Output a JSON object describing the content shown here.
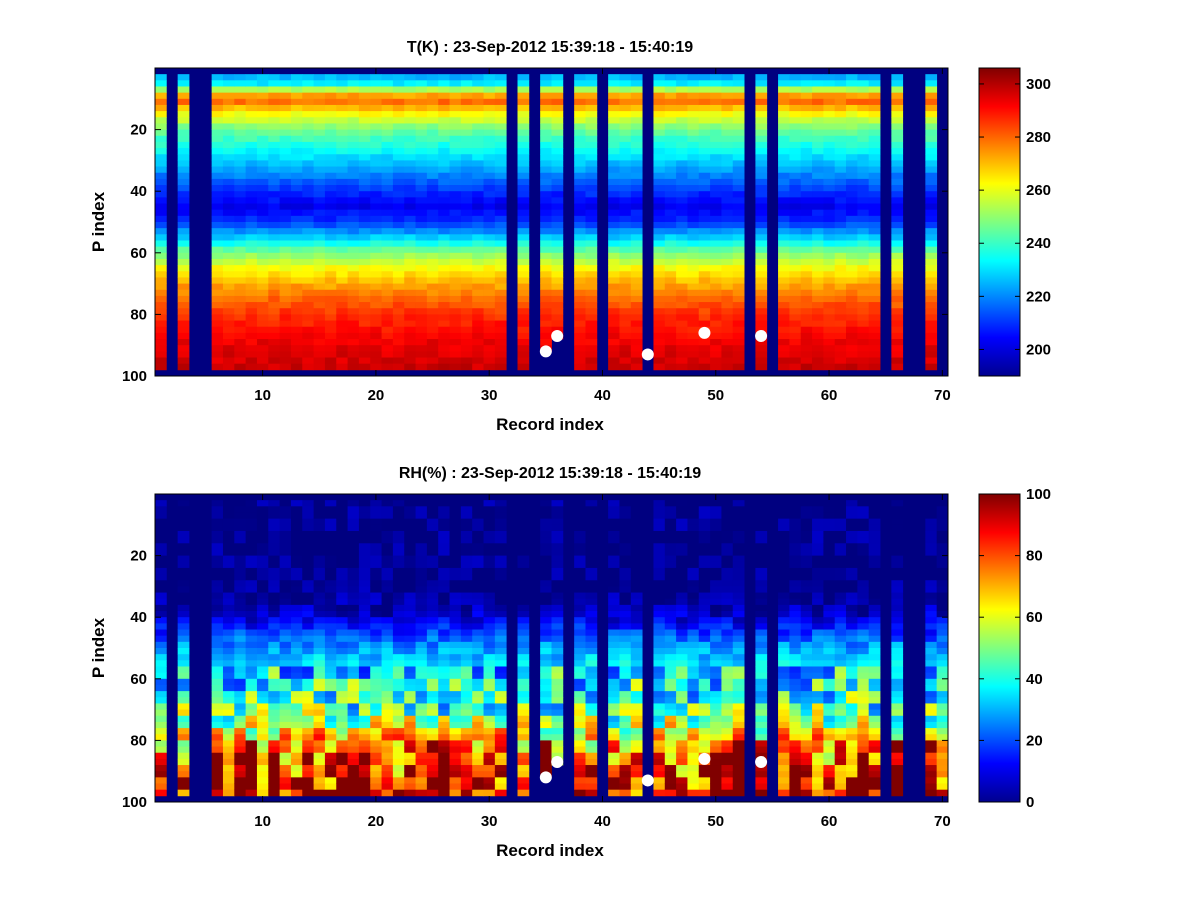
{
  "chart_data": [
    {
      "type": "heatmap",
      "title": "T(K) : 23-Sep-2012 15:39:18 - 15:40:19",
      "xlabel": "Record index",
      "ylabel": "P index",
      "xlim": [
        1,
        70
      ],
      "ylim": [
        0,
        100
      ],
      "y_reversed": true,
      "x_ticks": [
        10,
        20,
        30,
        40,
        50,
        60,
        70
      ],
      "y_ticks": [
        20,
        40,
        60,
        80,
        100
      ],
      "colormap": "jet",
      "grid": false,
      "clim": [
        190,
        306
      ],
      "colorbar_ticks": [
        200,
        220,
        240,
        260,
        280,
        300
      ],
      "valid_p_range": [
        2,
        98
      ],
      "missing_records": [
        2,
        4,
        5,
        32,
        34,
        37,
        40,
        44,
        53,
        55,
        65,
        67,
        68,
        70
      ],
      "missing_partial": [
        {
          "record": 35,
          "from_p": 92
        },
        {
          "record": 36,
          "from_p": 87
        }
      ],
      "profile_p": [
        2,
        5,
        8,
        10,
        15,
        20,
        30,
        40,
        45,
        50,
        55,
        60,
        65,
        70,
        75,
        80,
        85,
        90,
        95,
        98
      ],
      "profile_mean": [
        222,
        232,
        263,
        283,
        262,
        246,
        228,
        210,
        203,
        210,
        228,
        248,
        262,
        272,
        280,
        286,
        290,
        294,
        296,
        298
      ],
      "markers": [
        {
          "x": 35,
          "y": 92
        },
        {
          "x": 36,
          "y": 87
        },
        {
          "x": 44,
          "y": 93
        },
        {
          "x": 49,
          "y": 86
        },
        {
          "x": 54,
          "y": 87
        }
      ]
    },
    {
      "type": "heatmap",
      "title": "RH(%) : 23-Sep-2012 15:39:18 - 15:40:19",
      "xlabel": "Record index",
      "ylabel": "P index",
      "xlim": [
        1,
        70
      ],
      "ylim": [
        0,
        100
      ],
      "y_reversed": true,
      "x_ticks": [
        10,
        20,
        30,
        40,
        50,
        60,
        70
      ],
      "y_ticks": [
        20,
        40,
        60,
        80,
        100
      ],
      "colormap": "jet",
      "grid": false,
      "clim": [
        0,
        100
      ],
      "colorbar_ticks": [
        0,
        20,
        40,
        60,
        80,
        100
      ],
      "valid_p_range": [
        2,
        98
      ],
      "missing_records": [
        2,
        4,
        5,
        32,
        34,
        37,
        40,
        44,
        53,
        55,
        65,
        67,
        68
      ],
      "missing_partial": [
        {
          "record": 35,
          "from_p": 92
        },
        {
          "record": 36,
          "from_p": 87
        }
      ],
      "profile_p": [
        0,
        30,
        35,
        40,
        45,
        50,
        55,
        60,
        65,
        70,
        75,
        80,
        85,
        90,
        95,
        98
      ],
      "profile_mean": [
        0,
        0,
        2,
        8,
        18,
        28,
        35,
        38,
        40,
        45,
        55,
        68,
        75,
        80,
        85,
        88
      ],
      "markers": [
        {
          "x": 35,
          "y": 92
        },
        {
          "x": 36,
          "y": 87
        },
        {
          "x": 44,
          "y": 93
        },
        {
          "x": 49,
          "y": 86
        },
        {
          "x": 54,
          "y": 87
        }
      ]
    }
  ]
}
